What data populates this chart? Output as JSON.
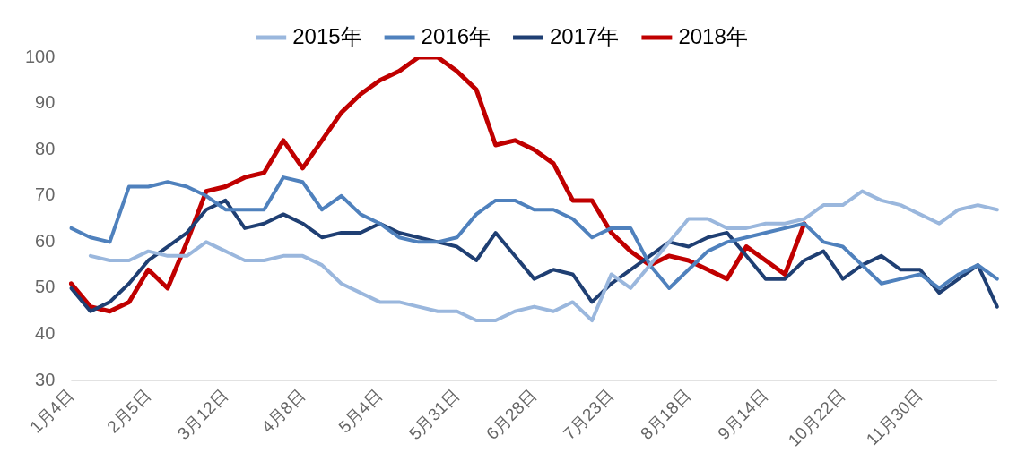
{
  "chart_data": {
    "type": "line",
    "categories": [
      "1月4日",
      null,
      null,
      null,
      "2月5日",
      null,
      null,
      null,
      "3月12日",
      null,
      null,
      null,
      "4月8日",
      null,
      null,
      null,
      "5月4日",
      null,
      null,
      null,
      "5月31日",
      null,
      null,
      null,
      "6月28日",
      null,
      null,
      null,
      "7月23日",
      null,
      null,
      null,
      "8月18日",
      null,
      null,
      null,
      "9月14日",
      null,
      null,
      null,
      "10月22日",
      null,
      null,
      null,
      "11月30日",
      null,
      null,
      null,
      null
    ],
    "series": [
      {
        "name": "2015年",
        "color": "#9ab7dd",
        "values": [
          null,
          57,
          56,
          56,
          58,
          57,
          57,
          60,
          58,
          56,
          56,
          57,
          57,
          55,
          51,
          49,
          47,
          47,
          46,
          45,
          45,
          43,
          43,
          45,
          46,
          45,
          47,
          43,
          53,
          50,
          55,
          60,
          65,
          65,
          63,
          63,
          64,
          64,
          65,
          68,
          68,
          71,
          69,
          68,
          66,
          64,
          67,
          68,
          67
        ]
      },
      {
        "name": "2016年",
        "color": "#4f81bd",
        "values": [
          63,
          61,
          60,
          72,
          72,
          73,
          72,
          70,
          67,
          67,
          67,
          74,
          73,
          67,
          70,
          66,
          64,
          61,
          60,
          60,
          61,
          66,
          69,
          69,
          67,
          67,
          65,
          61,
          63,
          63,
          55,
          50,
          54,
          58,
          60,
          61,
          62,
          63,
          64,
          60,
          59,
          55,
          51,
          52,
          53,
          50,
          53,
          55,
          52
        ]
      },
      {
        "name": "2017年",
        "color": "#1f3f73",
        "values": [
          50,
          45,
          47,
          51,
          56,
          59,
          62,
          67,
          69,
          63,
          64,
          66,
          64,
          61,
          62,
          62,
          64,
          62,
          61,
          60,
          59,
          56,
          62,
          57,
          52,
          54,
          53,
          47,
          51,
          54,
          57,
          60,
          59,
          61,
          62,
          57,
          52,
          52,
          56,
          58,
          52,
          55,
          57,
          54,
          54,
          49,
          52,
          55,
          46
        ]
      },
      {
        "name": "2018年",
        "color": "#c00000",
        "values": [
          51,
          46,
          45,
          47,
          54,
          50,
          60,
          71,
          72,
          74,
          75,
          82,
          76,
          82,
          88,
          92,
          95,
          97,
          100,
          100,
          97,
          93,
          81,
          82,
          80,
          77,
          69,
          69,
          62,
          58,
          55,
          57,
          56,
          54,
          52,
          59,
          56,
          53,
          64,
          null,
          null,
          null,
          null,
          null,
          null,
          null,
          null,
          null,
          null
        ]
      }
    ],
    "ylim": [
      30,
      100
    ],
    "yticks": [
      30,
      40,
      50,
      60,
      70,
      80,
      90,
      100
    ],
    "grid": false,
    "legend": "top",
    "marker": "none",
    "line_style": "solid"
  }
}
